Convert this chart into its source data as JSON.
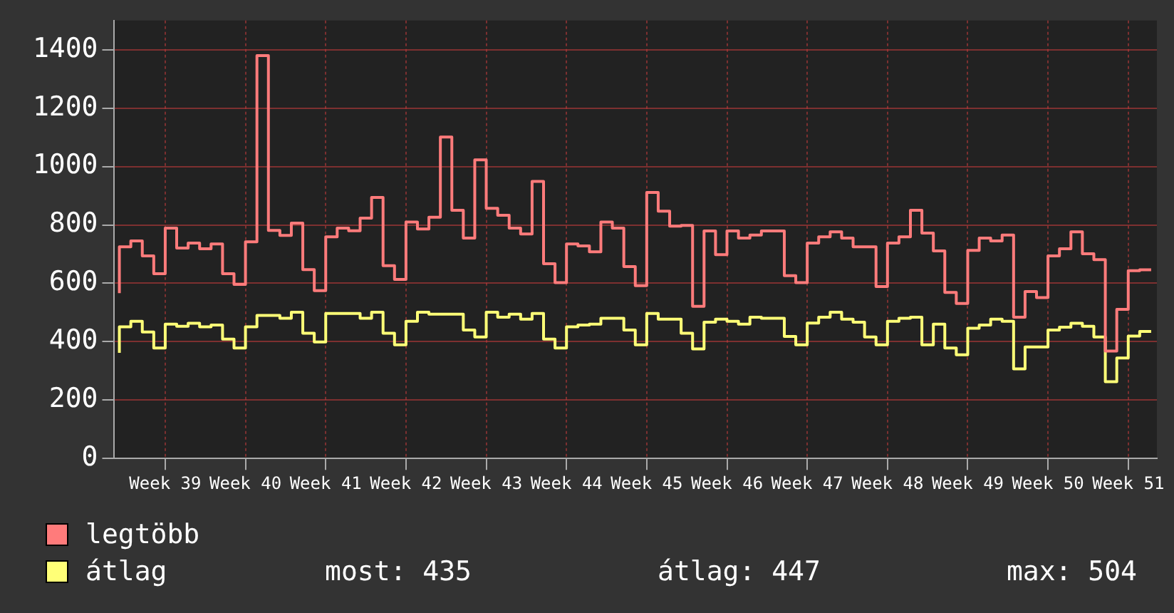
{
  "chart_data": {
    "type": "step",
    "categories": [
      null,
      null,
      null,
      null,
      "Week 39",
      null,
      null,
      null,
      null,
      null,
      null,
      "Week 40",
      null,
      null,
      null,
      null,
      null,
      null,
      "Week 41",
      null,
      null,
      null,
      null,
      null,
      null,
      "Week 42",
      null,
      null,
      null,
      null,
      null,
      null,
      "Week 43",
      null,
      null,
      null,
      null,
      null,
      null,
      "Week 44",
      null,
      null,
      null,
      null,
      null,
      null,
      "Week 45",
      null,
      null,
      null,
      null,
      null,
      null,
      "Week 46",
      null,
      null,
      null,
      null,
      null,
      null,
      "Week 47",
      null,
      null,
      null,
      null,
      null,
      null,
      "Week 48",
      null,
      null,
      null,
      null,
      null,
      null,
      "Week 49",
      null,
      null,
      null,
      null,
      null,
      null,
      "Week 50",
      null,
      null,
      null,
      null,
      null,
      null,
      "Week 51",
      null,
      null
    ],
    "series": [
      {
        "name": "legtöbb",
        "color": "#ff7b7b",
        "values": [
          566,
          725,
          745,
          694,
          633,
          789,
          721,
          738,
          718,
          735,
          633,
          596,
          742,
          1380,
          781,
          764,
          806,
          647,
          575,
          759,
          789,
          780,
          823,
          894,
          660,
          613,
          810,
          786,
          826,
          1101,
          850,
          755,
          1023,
          857,
          833,
          789,
          769,
          949,
          667,
          602,
          735,
          728,
          708,
          810,
          789,
          657,
          592,
          911,
          847,
          796,
          798,
          521,
          779,
          698,
          779,
          755,
          765,
          779,
          779,
          626,
          602,
          738,
          759,
          776,
          755,
          725,
          725,
          589,
          738,
          759,
          850,
          772,
          711,
          569,
          531,
          713,
          755,
          745,
          765,
          484,
          572,
          551,
          694,
          718,
          776,
          701,
          681,
          368,
          511,
          643,
          646
        ]
      },
      {
        "name": "átlag",
        "color": "#ffff77",
        "values": [
          362,
          451,
          470,
          433,
          378,
          460,
          453,
          463,
          451,
          457,
          409,
          378,
          451,
          490,
          490,
          480,
          501,
          429,
          399,
          497,
          497,
          497,
          480,
          501,
          429,
          389,
          470,
          501,
          494,
          494,
          494,
          440,
          416,
          501,
          484,
          494,
          477,
          497,
          409,
          378,
          451,
          457,
          460,
          480,
          480,
          440,
          389,
          497,
          477,
          477,
          429,
          375,
          467,
          477,
          470,
          460,
          484,
          480,
          480,
          418,
          389,
          464,
          484,
          501,
          477,
          467,
          416,
          389,
          470,
          480,
          484,
          389,
          460,
          378,
          355,
          446,
          457,
          477,
          470,
          307,
          382,
          382,
          440,
          450,
          463,
          453,
          416,
          263,
          344,
          419,
          435
        ]
      }
    ],
    "ylim": [
      0,
      1500
    ],
    "yticks": [
      0,
      200,
      400,
      600,
      800,
      1000,
      1200,
      1400
    ],
    "grid": true,
    "legend": "bottom left",
    "annotations": [
      "most: 435",
      "átlag: 447",
      "max: 504"
    ]
  }
}
